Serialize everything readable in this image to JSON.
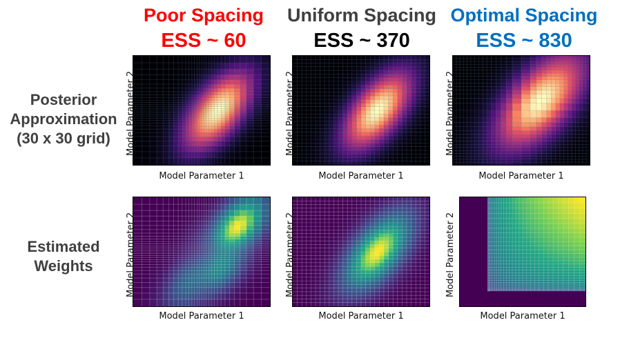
{
  "columns": [
    {
      "title": "Poor Spacing",
      "ess": "ESS ~ 60",
      "color": "#ff0000"
    },
    {
      "title": "Uniform Spacing",
      "ess": "ESS ~ 370",
      "color": "#404040",
      "ess_color": "#000000"
    },
    {
      "title": "Optimal Spacing",
      "ess": "ESS ~ 830",
      "color": "#0070c0"
    }
  ],
  "rows": [
    {
      "label_lines": [
        "Posterior",
        "Approximation",
        "(30 x 30 grid)"
      ],
      "colormap": "magma"
    },
    {
      "label_lines": [
        "Estimated",
        "Weights"
      ],
      "colormap": "viridis"
    }
  ],
  "axes": {
    "xlabel": "Model Parameter 1",
    "ylabel": "Model Parameter 2"
  },
  "grid_spacing": [
    "poor",
    "uniform",
    "optimal"
  ]
}
